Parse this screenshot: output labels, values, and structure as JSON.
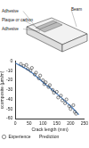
{
  "diagram": {
    "labels": [
      "Adhesive",
      "Plaque or carbon",
      "Adhesive",
      "Beam"
    ]
  },
  "chart_data": {
    "type": "scatter",
    "x_label": "Crack length (mm)",
    "y_label": "εcomposite (μm/m)",
    "xlim": [
      0,
      250
    ],
    "xticks": [
      0,
      50,
      100,
      150,
      200,
      250
    ],
    "ylim": [
      -60,
      0
    ],
    "yticks": [
      -60,
      -50,
      -40,
      -30,
      -20,
      -10,
      0
    ],
    "grid": false,
    "legend": "bottom-left",
    "series": [
      {
        "name": "Experience",
        "type": "scatter",
        "marker": "circle",
        "color": "#333333",
        "x": [
          20,
          30,
          40,
          45,
          55,
          60,
          70,
          75,
          85,
          90,
          100,
          105,
          110,
          120,
          125,
          135,
          140,
          150,
          155,
          165,
          170,
          180,
          185,
          195,
          200,
          210,
          215,
          220
        ],
        "values": [
          -3,
          -5,
          -4,
          -8,
          -10,
          -7,
          -14,
          -12,
          -18,
          -15,
          -20,
          -24,
          -22,
          -27,
          -25,
          -30,
          -33,
          -32,
          -38,
          -36,
          -41,
          -44,
          -40,
          -47,
          -50,
          -46,
          -53,
          -55
        ]
      },
      {
        "name": "Prediction",
        "type": "line",
        "line_style": "solid",
        "color": "#4a7fc1",
        "x": [
          0,
          50,
          100,
          150,
          200,
          230
        ],
        "values": [
          -2,
          -10,
          -22,
          -34,
          -47,
          -56
        ]
      }
    ]
  }
}
